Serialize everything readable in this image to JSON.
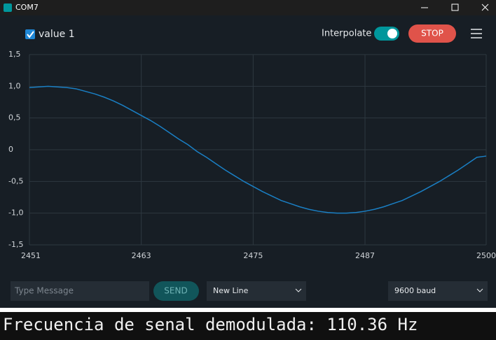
{
  "window": {
    "title": "COM7"
  },
  "toolbar": {
    "interpolate": "Interpolate",
    "stop": "STOP"
  },
  "controls": {
    "message_placeholder": "Type Message",
    "send": "SEND",
    "line_ending": "New Line",
    "baud": "9600 baud"
  },
  "console": {
    "output": "Frecuencia de senal demodulada: 110.36 Hz"
  },
  "chart_data": {
    "type": "line",
    "x": [
      2451,
      2452,
      2453,
      2454,
      2455,
      2456,
      2457,
      2458,
      2459,
      2460,
      2461,
      2462,
      2463,
      2464,
      2465,
      2466,
      2467,
      2468,
      2469,
      2470,
      2471,
      2472,
      2473,
      2474,
      2475,
      2476,
      2477,
      2478,
      2479,
      2480,
      2481,
      2482,
      2483,
      2484,
      2485,
      2486,
      2487,
      2488,
      2489,
      2490,
      2491,
      2492,
      2493,
      2494,
      2495,
      2496,
      2497,
      2498,
      2499,
      2500
    ],
    "series": [
      {
        "name": "value 1",
        "color": "#1a7fc4",
        "values": [
          0.98,
          0.99,
          1.0,
          0.99,
          0.98,
          0.96,
          0.92,
          0.88,
          0.83,
          0.77,
          0.7,
          0.62,
          0.54,
          0.46,
          0.37,
          0.27,
          0.17,
          0.08,
          -0.03,
          -0.12,
          -0.22,
          -0.32,
          -0.41,
          -0.5,
          -0.58,
          -0.66,
          -0.73,
          -0.8,
          -0.85,
          -0.9,
          -0.94,
          -0.97,
          -0.99,
          -1.0,
          -1.0,
          -0.99,
          -0.97,
          -0.94,
          -0.9,
          -0.85,
          -0.8,
          -0.73,
          -0.66,
          -0.58,
          -0.5,
          -0.41,
          -0.32,
          -0.22,
          -0.12,
          -0.1
        ]
      }
    ],
    "xlim": [
      2451,
      2500
    ],
    "xticks": [
      2451,
      2463,
      2475,
      2487,
      2500
    ],
    "ylim": [
      -1.5,
      1.5
    ],
    "yticks": [
      {
        "value": -1.5,
        "label": "-1,5"
      },
      {
        "value": -1,
        "label": "-1,0"
      },
      {
        "value": -0.5,
        "label": "-0,5"
      },
      0,
      {
        "value": 0.5,
        "label": "0,5"
      },
      {
        "value": 1,
        "label": "1,0"
      },
      {
        "value": 1.5,
        "label": "1,5"
      }
    ],
    "grid": true
  }
}
